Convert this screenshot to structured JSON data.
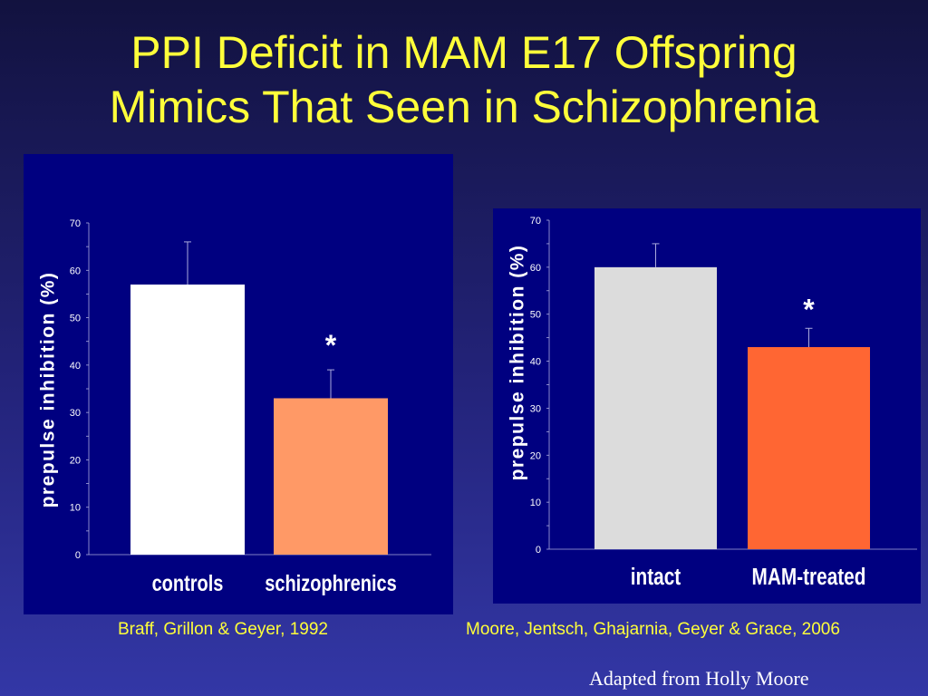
{
  "slide": {
    "title_line1": "PPI Deficit in MAM E17 Offspring",
    "title_line2": "Mimics That Seen in Schizophrenia",
    "credit": "Adapted from Holly Moore"
  },
  "chart_data": [
    {
      "type": "bar",
      "ylabel": "prepulse inhibition (%)",
      "xlabel": "",
      "ylim": [
        0,
        70
      ],
      "yticks": [
        0,
        10,
        20,
        30,
        40,
        50,
        60,
        70
      ],
      "categories": [
        "controls",
        "schizophrenics"
      ],
      "values": [
        57,
        33
      ],
      "error_upper": [
        66,
        39
      ],
      "colors": [
        "#ffffff",
        "#ff9966"
      ],
      "annotations": [
        {
          "category": "schizophrenics",
          "text": "*"
        }
      ],
      "source": "Braff, Grillon & Geyer, 1992"
    },
    {
      "type": "bar",
      "ylabel": "prepulse inhibition (%)",
      "xlabel": "",
      "ylim": [
        0,
        70
      ],
      "yticks": [
        0,
        10,
        20,
        30,
        40,
        50,
        60,
        70
      ],
      "categories": [
        "intact",
        "MAM-treated"
      ],
      "values": [
        60,
        43
      ],
      "error_upper": [
        65,
        47
      ],
      "colors": [
        "#dcdcdc",
        "#ff6633"
      ],
      "annotations": [
        {
          "category": "MAM-treated",
          "text": "*"
        }
      ],
      "source": "Moore, Jentsch, Ghajarnia, Geyer & Grace, 2006"
    }
  ]
}
